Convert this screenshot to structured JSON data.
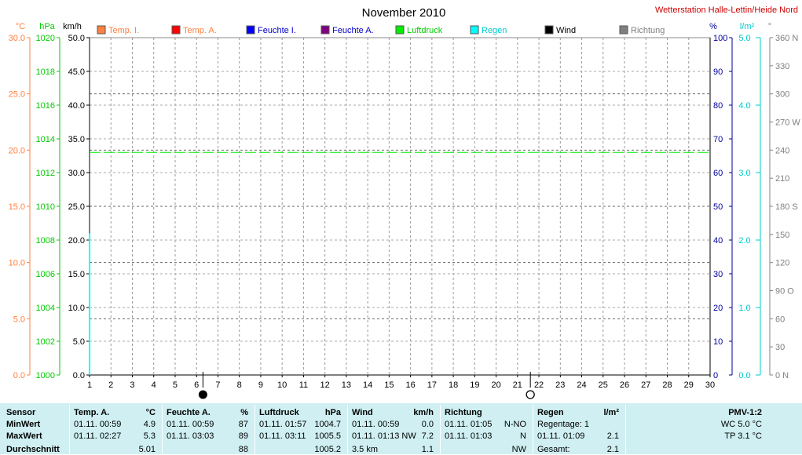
{
  "title": "November 2010",
  "station": "Wetterstation Halle-Lettin/Heide Nord",
  "colors": {
    "temp_axis": "#ff8040",
    "pressure_axis": "#00cc00",
    "humidity_axis": "#000099",
    "rain_axis": "#00d0d0",
    "direction_axis": "#808080",
    "station_title": "#cc0000"
  },
  "axis_units": {
    "temp": "°C",
    "pressure": "hPa",
    "wind": "km/h",
    "humidity": "%",
    "rain": "l/m²",
    "direction": "°"
  },
  "legend": [
    {
      "label": "Temp. I.",
      "color": "#ff8040",
      "text_color": "#ff8040"
    },
    {
      "label": "Temp. A.",
      "color": "#ff0000",
      "text_color": "#ff8040"
    },
    {
      "label": "Feuchte I.",
      "color": "#0000ff",
      "text_color": "#0000cc"
    },
    {
      "label": "Feuchte A.",
      "color": "#800080",
      "text_color": "#0000cc"
    },
    {
      "label": "Luftdruck",
      "color": "#00ee00",
      "text_color": "#00cc00"
    },
    {
      "label": "Regen",
      "color": "#00ffff",
      "text_color": "#00cccc"
    },
    {
      "label": "Wind",
      "color": "#000000",
      "text_color": "#000000"
    },
    {
      "label": "Richtung",
      "color": "#808080",
      "text_color": "#808080"
    }
  ],
  "chart_data": {
    "type": "line",
    "title": "November 2010",
    "x": [
      1,
      2,
      3,
      4,
      5,
      6,
      7,
      8,
      9,
      10,
      11,
      12,
      13,
      14,
      15,
      16,
      17,
      18,
      19,
      20,
      21,
      22,
      23,
      24,
      25,
      26,
      27,
      28,
      29,
      30
    ],
    "xlim": [
      1,
      30
    ],
    "axes": {
      "temp": {
        "label": "°C",
        "ylim": [
          0,
          30
        ],
        "ticks": [
          "0.0",
          "5.0",
          "10.0",
          "15.0",
          "20.0",
          "25.0",
          "30.0"
        ]
      },
      "pressure": {
        "label": "hPa",
        "ylim": [
          1000,
          1020
        ],
        "ticks": [
          "1000",
          "1002",
          "1004",
          "1006",
          "1008",
          "1010",
          "1012",
          "1014",
          "1016",
          "1018",
          "1020"
        ]
      },
      "wind": {
        "label": "km/h",
        "ylim": [
          0,
          50
        ],
        "ticks": [
          "0.0",
          "5.0",
          "10.0",
          "15.0",
          "20.0",
          "25.0",
          "30.0",
          "35.0",
          "40.0",
          "45.0",
          "50.0"
        ]
      },
      "humidity": {
        "label": "%",
        "ylim": [
          0,
          100
        ],
        "ticks": [
          "0",
          "10",
          "20",
          "30",
          "40",
          "50",
          "60",
          "70",
          "80",
          "90",
          "100"
        ]
      },
      "rain": {
        "label": "l/m²",
        "ylim": [
          0,
          5
        ],
        "ticks": [
          "0.0",
          "1.0",
          "2.0",
          "3.0",
          "4.0",
          "5.0"
        ]
      },
      "direction": {
        "label": "°",
        "ylim": [
          0,
          360
        ],
        "ticks": [
          "0 N",
          "30",
          "60",
          "90 O",
          "120",
          "150",
          "180 S",
          "210",
          "240",
          "270 W",
          "300",
          "330",
          "360 N"
        ]
      }
    },
    "series": [
      {
        "name": "Luftdruck",
        "axis": "pressure",
        "color": "#00ee00",
        "style": "dashed",
        "x": [
          1,
          30
        ],
        "values": [
          1013.2,
          1013.2
        ]
      },
      {
        "name": "Regen",
        "axis": "rain",
        "color": "#00ffff",
        "style": "solid",
        "x": [
          1,
          1
        ],
        "values": [
          0,
          2.1
        ]
      }
    ],
    "moon_phases": [
      {
        "day": 6.3,
        "phase": "new"
      },
      {
        "day": 21.6,
        "phase": "full"
      }
    ],
    "grid": true
  },
  "stats": {
    "sensor": {
      "header": "Sensor",
      "rows": [
        "MinWert",
        "MaxWert",
        "Durchschnitt"
      ]
    },
    "temp_a": {
      "header": "Temp. A.",
      "unit": "°C",
      "rows": [
        [
          "01.11.  00:59",
          "4.9"
        ],
        [
          "01.11.  02:27",
          "5.3"
        ],
        [
          "",
          "5.01"
        ]
      ]
    },
    "feuchte_a": {
      "header": "Feuchte A.",
      "unit": "%",
      "rows": [
        [
          "01.11.  00:59",
          "87"
        ],
        [
          "01.11.  03:03",
          "89"
        ],
        [
          "",
          "88"
        ]
      ]
    },
    "luftdruck": {
      "header": "Luftdruck",
      "unit": "hPa",
      "rows": [
        [
          "01.11.  01:57",
          "1004.7"
        ],
        [
          "01.11.  03:11",
          "1005.5"
        ],
        [
          "",
          "1005.2"
        ]
      ]
    },
    "wind": {
      "header": "Wind",
      "unit": "km/h",
      "rows": [
        [
          "01.11.  00:59",
          "0.0"
        ],
        [
          "01.11.  01:13 NW",
          "7.2"
        ],
        [
          "3.5 km",
          "1.1"
        ]
      ]
    },
    "richtung": {
      "header": "Richtung",
      "rows": [
        [
          "01.11.  01:05",
          "N-NO"
        ],
        [
          "01.11.  01:03",
          "N"
        ],
        [
          "",
          "NW"
        ]
      ]
    },
    "regen": {
      "header": "Regen",
      "unit": "l/m²",
      "rows": [
        [
          "Regentage: 1",
          ""
        ],
        [
          "01.11.  01:09",
          "2.1"
        ],
        [
          "Gesamt:",
          "2.1"
        ]
      ]
    },
    "pmv": {
      "header": "PMV-1:2",
      "rows": [
        "WC 5.0 °C",
        "TP 3.1 °C"
      ]
    }
  }
}
